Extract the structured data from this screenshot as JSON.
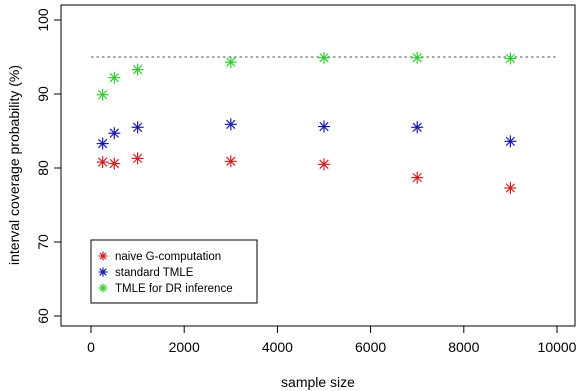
{
  "chart_data": {
    "type": "scatter",
    "xlabel": "sample size",
    "ylabel": "interval coverage probability (%)",
    "xlim": [
      0,
      10000
    ],
    "ylim": [
      60,
      100
    ],
    "x_ticks": [
      "0",
      "2000",
      "4000",
      "6000",
      "8000",
      "10000"
    ],
    "y_ticks": [
      "60",
      "70",
      "80",
      "90",
      "100"
    ],
    "reference_line": {
      "y": 95,
      "style": "dotted",
      "color": "#888888"
    },
    "grid": false,
    "legend_position": "bottom-left",
    "marker": "asterisk",
    "series": [
      {
        "name": "naive G-computation",
        "color": "#cc2222",
        "points": [
          {
            "x": 250,
            "y": 80.8
          },
          {
            "x": 500,
            "y": 80.6
          },
          {
            "x": 1000,
            "y": 81.3
          },
          {
            "x": 3000,
            "y": 80.9
          },
          {
            "x": 5000,
            "y": 80.5
          },
          {
            "x": 7000,
            "y": 78.7
          },
          {
            "x": 9000,
            "y": 77.3
          }
        ]
      },
      {
        "name": "standard TMLE",
        "color": "#1a1aaa",
        "points": [
          {
            "x": 250,
            "y": 83.3
          },
          {
            "x": 500,
            "y": 84.7
          },
          {
            "x": 1000,
            "y": 85.5
          },
          {
            "x": 3000,
            "y": 85.9
          },
          {
            "x": 5000,
            "y": 85.6
          },
          {
            "x": 7000,
            "y": 85.5
          },
          {
            "x": 9000,
            "y": 83.6
          }
        ]
      },
      {
        "name": "TMLE for DR inference",
        "color": "#33cc33",
        "points": [
          {
            "x": 250,
            "y": 89.9
          },
          {
            "x": 500,
            "y": 92.2
          },
          {
            "x": 1000,
            "y": 93.3
          },
          {
            "x": 3000,
            "y": 94.3
          },
          {
            "x": 5000,
            "y": 94.9
          },
          {
            "x": 7000,
            "y": 94.9
          },
          {
            "x": 9000,
            "y": 94.8
          }
        ]
      }
    ]
  }
}
